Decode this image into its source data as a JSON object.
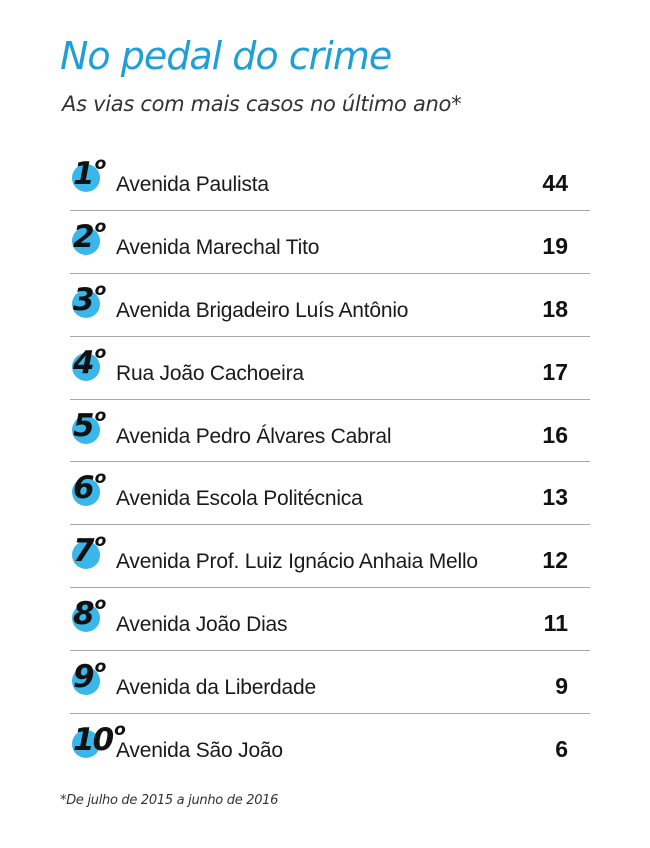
{
  "title": "No pedal do crime",
  "subtitle": "As vias com mais casos no último ano*",
  "footnote": "*De julho de 2015 a junho de 2016",
  "colors": {
    "accent": "#39b6ea",
    "title": "#1f9fd8"
  },
  "chart_data": {
    "type": "table",
    "title": "No pedal do crime",
    "subtitle": "As vias com mais casos no último ano*",
    "rows": [
      {
        "rank": "1",
        "ordinal": "o",
        "street": "Avenida Paulista",
        "cases": "44"
      },
      {
        "rank": "2",
        "ordinal": "o",
        "street": "Avenida Marechal Tito",
        "cases": "19"
      },
      {
        "rank": "3",
        "ordinal": "o",
        "street": "Avenida Brigadeiro Luís Antônio",
        "cases": "18"
      },
      {
        "rank": "4",
        "ordinal": "o",
        "street": "Rua João Cachoeira",
        "cases": "17"
      },
      {
        "rank": "5",
        "ordinal": "o",
        "street": "Avenida Pedro Álvares Cabral",
        "cases": "16"
      },
      {
        "rank": "6",
        "ordinal": "o",
        "street": "Avenida Escola Politécnica",
        "cases": "13"
      },
      {
        "rank": "7",
        "ordinal": "o",
        "street": "Avenida Prof. Luiz Ignácio Anhaia Mello",
        "cases": "12"
      },
      {
        "rank": "8",
        "ordinal": "o",
        "street": "Avenida João Dias",
        "cases": "11"
      },
      {
        "rank": "9",
        "ordinal": "o",
        "street": "Avenida da Liberdade",
        "cases": "9"
      },
      {
        "rank": "10",
        "ordinal": "o",
        "street": "Avenida São João",
        "cases": "6"
      }
    ]
  }
}
